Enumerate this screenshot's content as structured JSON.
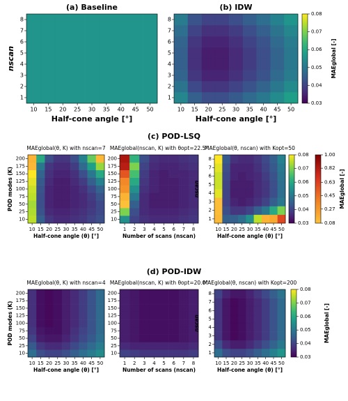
{
  "sections": [
    "(c) POD-LSQ",
    "(d) POD-IDW"
  ],
  "chart_data": [
    {
      "type": "heatmap",
      "title": "(a) Baseline",
      "xlabel": "Half-cone angle [°]",
      "ylabel": "nscan",
      "x": [
        10,
        15,
        20,
        25,
        30,
        35,
        40,
        45,
        50
      ],
      "y": [
        1,
        2,
        3,
        4,
        5,
        6,
        7,
        8
      ],
      "clim": [
        0.03,
        0.08
      ],
      "values": [
        [
          0.056,
          0.056,
          0.056,
          0.056,
          0.056,
          0.056,
          0.056,
          0.056,
          0.056
        ],
        [
          0.056,
          0.056,
          0.056,
          0.056,
          0.056,
          0.056,
          0.056,
          0.056,
          0.056
        ],
        [
          0.056,
          0.056,
          0.056,
          0.056,
          0.056,
          0.056,
          0.056,
          0.056,
          0.056
        ],
        [
          0.056,
          0.056,
          0.056,
          0.056,
          0.056,
          0.056,
          0.056,
          0.056,
          0.056
        ],
        [
          0.056,
          0.056,
          0.056,
          0.056,
          0.056,
          0.056,
          0.056,
          0.056,
          0.056
        ],
        [
          0.056,
          0.056,
          0.056,
          0.056,
          0.056,
          0.056,
          0.056,
          0.056,
          0.056
        ],
        [
          0.056,
          0.056,
          0.056,
          0.056,
          0.056,
          0.056,
          0.056,
          0.056,
          0.056
        ],
        [
          0.056,
          0.056,
          0.056,
          0.056,
          0.056,
          0.056,
          0.056,
          0.056,
          0.056
        ]
      ]
    },
    {
      "type": "heatmap",
      "title": "(b) IDW",
      "xlabel": "Half-cone angle [°]",
      "x": [
        10,
        15,
        20,
        25,
        30,
        35,
        40,
        45,
        50
      ],
      "y": [
        1,
        2,
        3,
        4,
        5,
        6,
        7,
        8
      ],
      "clim": [
        0.03,
        0.08
      ],
      "colorbar": {
        "label": "MAEglobal [-]",
        "lim": [
          0.03,
          0.08
        ],
        "ticks": [
          0.03,
          0.04,
          0.05,
          0.06,
          0.07,
          0.08
        ]
      },
      "values": [
        [
          0.053,
          0.045,
          0.042,
          0.042,
          0.044,
          0.047,
          0.05,
          0.054,
          0.058
        ],
        [
          0.049,
          0.041,
          0.038,
          0.038,
          0.04,
          0.043,
          0.046,
          0.05,
          0.054
        ],
        [
          0.046,
          0.038,
          0.035,
          0.035,
          0.037,
          0.04,
          0.043,
          0.047,
          0.051
        ],
        [
          0.045,
          0.037,
          0.034,
          0.034,
          0.036,
          0.039,
          0.042,
          0.046,
          0.05
        ],
        [
          0.045,
          0.037,
          0.034,
          0.034,
          0.036,
          0.039,
          0.042,
          0.046,
          0.05
        ],
        [
          0.046,
          0.038,
          0.035,
          0.035,
          0.037,
          0.04,
          0.043,
          0.047,
          0.051
        ],
        [
          0.048,
          0.04,
          0.037,
          0.037,
          0.039,
          0.042,
          0.045,
          0.049,
          0.053
        ],
        [
          0.051,
          0.043,
          0.04,
          0.04,
          0.042,
          0.045,
          0.048,
          0.052,
          0.056
        ]
      ]
    },
    {
      "type": "heatmap",
      "title": "MAEglobal(θ, K) with nscan=7",
      "xlabel": "Half-cone angle (θ) [°]",
      "ylabel": "POD modes (K)",
      "x": [
        10,
        15,
        20,
        25,
        30,
        35,
        40,
        45,
        50
      ],
      "y": [
        10,
        25,
        50,
        75,
        100,
        125,
        150,
        175,
        200
      ],
      "clim": [
        0.03,
        0.08
      ],
      "clim2": [
        0.08,
        1.0
      ],
      "values": [
        [
          0.075,
          0.045,
          0.038,
          0.036,
          0.036,
          0.037,
          0.038,
          0.04,
          0.042
        ],
        [
          0.074,
          0.043,
          0.036,
          0.035,
          0.035,
          0.036,
          0.037,
          0.039,
          0.041
        ],
        [
          0.073,
          0.042,
          0.035,
          0.034,
          0.034,
          0.035,
          0.036,
          0.038,
          0.041
        ],
        [
          0.075,
          0.042,
          0.035,
          0.034,
          0.034,
          0.035,
          0.036,
          0.039,
          0.043
        ],
        [
          0.076,
          0.043,
          0.035,
          0.034,
          0.034,
          0.035,
          0.037,
          0.041,
          0.046
        ],
        [
          0.078,
          0.044,
          0.036,
          0.034,
          0.034,
          0.036,
          0.039,
          0.045,
          0.052
        ],
        [
          0.08,
          0.046,
          0.037,
          0.035,
          0.035,
          0.037,
          0.042,
          0.05,
          0.06
        ],
        [
          0.12,
          0.05,
          0.038,
          0.036,
          0.036,
          0.039,
          0.047,
          0.058,
          0.072
        ],
        [
          0.15,
          0.06,
          0.042,
          0.038,
          0.038,
          0.042,
          0.052,
          0.068,
          0.12
        ]
      ]
    },
    {
      "type": "heatmap",
      "title": "MAEglobal(nscan, K) with θopt=22.5°",
      "xlabel": "Number of scans (nscan)",
      "x": [
        1,
        2,
        3,
        4,
        5,
        6,
        7,
        8
      ],
      "y": [
        10,
        25,
        50,
        75,
        100,
        125,
        150,
        175,
        200
      ],
      "clim": [
        0.03,
        0.08
      ],
      "clim2": [
        0.08,
        1.0
      ],
      "values": [
        [
          0.055,
          0.04,
          0.037,
          0.036,
          0.036,
          0.036,
          0.037,
          0.038
        ],
        [
          0.07,
          0.042,
          0.036,
          0.035,
          0.035,
          0.035,
          0.036,
          0.037
        ],
        [
          0.09,
          0.045,
          0.036,
          0.034,
          0.034,
          0.034,
          0.035,
          0.036
        ],
        [
          0.15,
          0.05,
          0.036,
          0.034,
          0.034,
          0.034,
          0.035,
          0.036
        ],
        [
          0.3,
          0.055,
          0.037,
          0.035,
          0.034,
          0.034,
          0.035,
          0.036
        ],
        [
          0.35,
          0.06,
          0.038,
          0.035,
          0.034,
          0.034,
          0.035,
          0.036
        ],
        [
          0.55,
          0.065,
          0.039,
          0.035,
          0.034,
          0.035,
          0.035,
          0.036
        ],
        [
          0.8,
          0.07,
          0.04,
          0.036,
          0.035,
          0.035,
          0.036,
          0.037
        ],
        [
          0.85,
          0.062,
          0.042,
          0.037,
          0.036,
          0.036,
          0.037,
          0.038
        ]
      ]
    },
    {
      "type": "heatmap",
      "title": "MAEglobal(θ, nscan) with Kopt=50",
      "xlabel": "Half-cone angle (θ) [°]",
      "ylabel": "nscan",
      "x": [
        10,
        15,
        20,
        25,
        30,
        35,
        40,
        45,
        50
      ],
      "y": [
        1,
        2,
        3,
        4,
        5,
        6,
        7,
        8
      ],
      "clim": [
        0.03,
        0.08
      ],
      "clim2": [
        0.08,
        1.0
      ],
      "colorbar": {
        "lim": [
          0.03,
          0.08
        ],
        "ticks": [
          0.03,
          0.04,
          0.05,
          0.06,
          0.07,
          0.08
        ]
      },
      "colorbar2": {
        "label": "MAEglobal [-]",
        "lim": [
          0.08,
          1.0
        ],
        "ticks": [
          0.08,
          0.27,
          0.45,
          0.63,
          0.82,
          {
            "value": 1.0,
            "label": "1.00"
          }
        ]
      },
      "values": [
        [
          0.12,
          0.045,
          0.045,
          0.048,
          0.055,
          0.075,
          0.15,
          0.2,
          0.6
        ],
        [
          0.11,
          0.042,
          0.038,
          0.038,
          0.04,
          0.045,
          0.05,
          0.06,
          0.07
        ],
        [
          0.1,
          0.04,
          0.035,
          0.034,
          0.035,
          0.037,
          0.04,
          0.045,
          0.05
        ],
        [
          0.078,
          0.04,
          0.034,
          0.034,
          0.034,
          0.036,
          0.038,
          0.042,
          0.048
        ],
        [
          0.076,
          0.04,
          0.034,
          0.034,
          0.034,
          0.036,
          0.038,
          0.042,
          0.048
        ],
        [
          0.076,
          0.041,
          0.035,
          0.034,
          0.035,
          0.036,
          0.039,
          0.043,
          0.049
        ],
        [
          0.078,
          0.042,
          0.035,
          0.035,
          0.035,
          0.037,
          0.04,
          0.044,
          0.05
        ],
        [
          0.08,
          0.044,
          0.037,
          0.036,
          0.036,
          0.038,
          0.041,
          0.045,
          0.052
        ]
      ]
    },
    {
      "type": "heatmap",
      "title": "MAEglobal(θ, K) with nscan=4",
      "xlabel": "Half-cone angle (θ) [°]",
      "ylabel": "POD modes (K)",
      "x": [
        10,
        15,
        20,
        25,
        30,
        35,
        40,
        45,
        50
      ],
      "y": [
        10,
        25,
        50,
        75,
        100,
        125,
        150,
        175,
        200
      ],
      "clim": [
        0.03,
        0.08
      ],
      "values": [
        [
          0.048,
          0.042,
          0.04,
          0.04,
          0.042,
          0.045,
          0.048,
          0.051,
          0.054
        ],
        [
          0.044,
          0.038,
          0.036,
          0.036,
          0.038,
          0.041,
          0.044,
          0.047,
          0.051
        ],
        [
          0.04,
          0.034,
          0.033,
          0.033,
          0.035,
          0.038,
          0.041,
          0.044,
          0.048
        ],
        [
          0.038,
          0.033,
          0.032,
          0.032,
          0.034,
          0.037,
          0.04,
          0.043,
          0.047
        ],
        [
          0.037,
          0.032,
          0.031,
          0.032,
          0.034,
          0.036,
          0.039,
          0.043,
          0.047
        ],
        [
          0.037,
          0.032,
          0.031,
          0.032,
          0.034,
          0.036,
          0.039,
          0.043,
          0.047
        ],
        [
          0.037,
          0.032,
          0.031,
          0.032,
          0.034,
          0.036,
          0.039,
          0.043,
          0.047
        ],
        [
          0.037,
          0.032,
          0.031,
          0.032,
          0.034,
          0.036,
          0.039,
          0.043,
          0.047
        ],
        [
          0.037,
          0.032,
          0.031,
          0.032,
          0.034,
          0.036,
          0.039,
          0.043,
          0.047
        ]
      ]
    },
    {
      "type": "heatmap",
      "title": "MAEglobal(nscan, K) with θopt=20.0°",
      "xlabel": "Number of scans (nscan)",
      "x": [
        1,
        2,
        3,
        4,
        5,
        6,
        7,
        8
      ],
      "y": [
        10,
        25,
        50,
        75,
        100,
        125,
        150,
        175,
        200
      ],
      "clim": [
        0.03,
        0.08
      ],
      "values": [
        [
          0.04,
          0.039,
          0.038,
          0.038,
          0.038,
          0.038,
          0.038,
          0.039
        ],
        [
          0.036,
          0.035,
          0.035,
          0.035,
          0.035,
          0.035,
          0.035,
          0.036
        ],
        [
          0.034,
          0.033,
          0.032,
          0.032,
          0.032,
          0.032,
          0.033,
          0.034
        ],
        [
          0.034,
          0.033,
          0.032,
          0.032,
          0.032,
          0.032,
          0.033,
          0.034
        ],
        [
          0.034,
          0.033,
          0.032,
          0.032,
          0.032,
          0.032,
          0.033,
          0.034
        ],
        [
          0.034,
          0.033,
          0.032,
          0.032,
          0.032,
          0.032,
          0.033,
          0.034
        ],
        [
          0.034,
          0.033,
          0.032,
          0.032,
          0.032,
          0.032,
          0.033,
          0.034
        ],
        [
          0.034,
          0.033,
          0.032,
          0.032,
          0.032,
          0.032,
          0.033,
          0.034
        ],
        [
          0.034,
          0.033,
          0.032,
          0.032,
          0.032,
          0.032,
          0.033,
          0.034
        ]
      ]
    },
    {
      "type": "heatmap",
      "title": "MAEglobal(θ, nscan) with Kopt=200",
      "xlabel": "Half-cone angle (θ) [°]",
      "ylabel": "nscan",
      "x": [
        10,
        15,
        20,
        25,
        30,
        35,
        40,
        45,
        50
      ],
      "y": [
        1,
        2,
        3,
        4,
        5,
        6,
        7,
        8
      ],
      "clim": [
        0.03,
        0.08
      ],
      "colorbar": {
        "label": "MAEglobal [-]",
        "lim": [
          0.03,
          0.08
        ],
        "ticks": [
          0.03,
          0.04,
          0.05,
          0.06,
          0.07,
          0.08
        ]
      },
      "values": [
        [
          0.048,
          0.042,
          0.04,
          0.04,
          0.042,
          0.045,
          0.048,
          0.052,
          0.056
        ],
        [
          0.042,
          0.036,
          0.034,
          0.034,
          0.036,
          0.039,
          0.042,
          0.046,
          0.05
        ],
        [
          0.038,
          0.033,
          0.031,
          0.032,
          0.034,
          0.036,
          0.039,
          0.043,
          0.047
        ],
        [
          0.038,
          0.033,
          0.031,
          0.032,
          0.034,
          0.036,
          0.039,
          0.043,
          0.047
        ],
        [
          0.038,
          0.033,
          0.031,
          0.032,
          0.034,
          0.036,
          0.039,
          0.043,
          0.047
        ],
        [
          0.038,
          0.033,
          0.031,
          0.032,
          0.034,
          0.036,
          0.039,
          0.043,
          0.047
        ],
        [
          0.038,
          0.033,
          0.031,
          0.032,
          0.034,
          0.036,
          0.039,
          0.043,
          0.047
        ],
        [
          0.04,
          0.035,
          0.033,
          0.033,
          0.035,
          0.038,
          0.041,
          0.045,
          0.049
        ]
      ]
    }
  ]
}
